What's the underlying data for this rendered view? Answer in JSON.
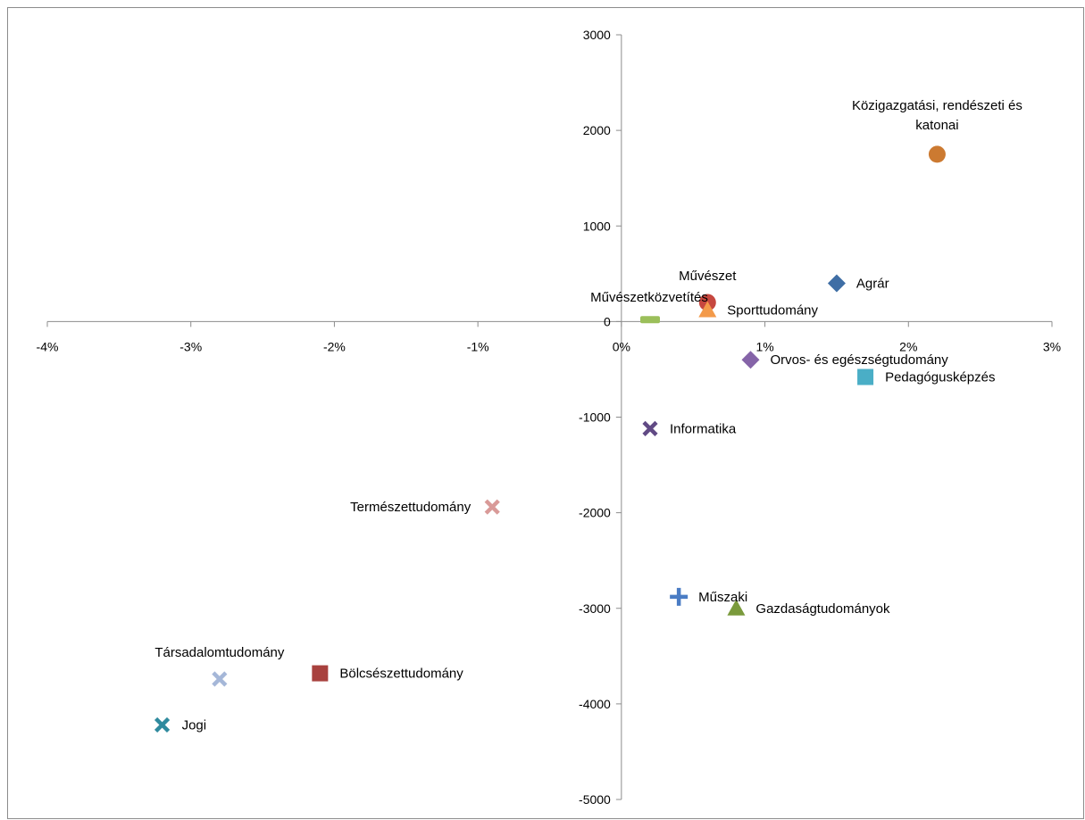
{
  "chart_data": {
    "type": "scatter",
    "title": "",
    "xlabel": "",
    "ylabel": "",
    "xlim": [
      -0.04,
      0.03
    ],
    "ylim": [
      -5000,
      3000
    ],
    "x_ticks": [
      -0.04,
      -0.03,
      -0.02,
      -0.01,
      0,
      0.01,
      0.02,
      0.03
    ],
    "x_tick_labels": [
      "-4%",
      "-3%",
      "-2%",
      "-1%",
      "0%",
      "1%",
      "2%",
      "3%"
    ],
    "y_ticks": [
      3000,
      2000,
      1000,
      0,
      -1000,
      -2000,
      -3000,
      -4000,
      -5000
    ],
    "y_tick_labels": [
      "3000",
      "2000",
      "1000",
      "0",
      "-1000",
      "-2000",
      "-3000",
      "-4000",
      "-5000"
    ],
    "grid": false,
    "legend": "none",
    "points": [
      {
        "name": "Agrár",
        "x": 0.015,
        "y": 400,
        "marker": "diamond",
        "color": "#3f6ea5",
        "label_pos": "right"
      },
      {
        "name": "Bölcsészettudomány",
        "x": -0.021,
        "y": -3680,
        "marker": "square",
        "color": "#a8413e",
        "label_pos": "right"
      },
      {
        "name": "Gazdaságtudományok",
        "x": 0.008,
        "y": -3000,
        "marker": "triangle",
        "color": "#7a9a3c",
        "label_pos": "right"
      },
      {
        "name": "Informatika",
        "x": 0.002,
        "y": -1120,
        "marker": "x",
        "color": "#614a85",
        "label_pos": "right"
      },
      {
        "name": "Jogi",
        "x": -0.032,
        "y": -4220,
        "marker": "x",
        "color": "#2f8a9e",
        "label_pos": "right"
      },
      {
        "name": "Közigazgatási, rendészeti és katonai",
        "x": 0.022,
        "y": 1750,
        "marker": "circle",
        "color": "#cc7a31",
        "label_pos": "above"
      },
      {
        "name": "Műszaki",
        "x": 0.004,
        "y": -2880,
        "marker": "plus",
        "color": "#4a7cc4",
        "label_pos": "right"
      },
      {
        "name": "Művészet",
        "x": 0.006,
        "y": 200,
        "marker": "circle",
        "color": "#c6473f",
        "label_pos": "above"
      },
      {
        "name": "Művészetközvetítés",
        "x": 0.002,
        "y": 20,
        "marker": "dash",
        "color": "#9bbf5a",
        "label_pos": "above-left"
      },
      {
        "name": "Orvos- és egészségtudomány",
        "x": 0.009,
        "y": -400,
        "marker": "diamond",
        "color": "#8564a8",
        "label_pos": "right"
      },
      {
        "name": "Pedagógusképzés",
        "x": 0.017,
        "y": -580,
        "marker": "square",
        "color": "#4aaec6",
        "label_pos": "right"
      },
      {
        "name": "Sporttudomány",
        "x": 0.006,
        "y": 120,
        "marker": "triangle",
        "color": "#f39a4a",
        "label_pos": "right"
      },
      {
        "name": "Társadalomtudomány",
        "x": -0.028,
        "y": -3740,
        "marker": "x",
        "color": "#a5b7d8",
        "label_pos": "above"
      },
      {
        "name": "Természettudomány",
        "x": -0.009,
        "y": -1940,
        "marker": "x",
        "color": "#d99a98",
        "label_pos": "left"
      }
    ]
  }
}
